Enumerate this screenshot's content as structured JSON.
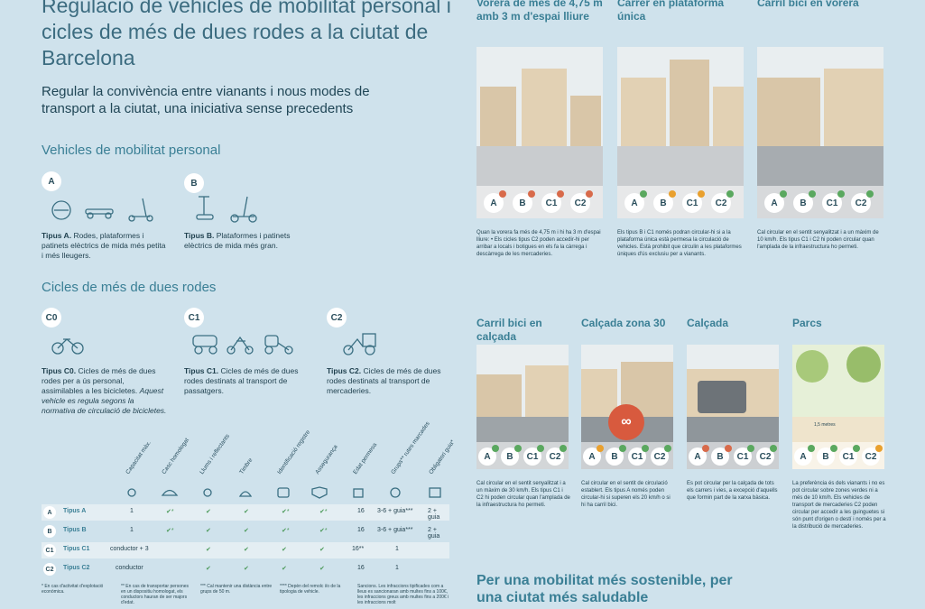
{
  "header": {
    "title": "Regulació de vehicles de mobilitat personal i cicles de més de dues rodes a la ciutat de Barcelona",
    "subtitle": "Regular la convivència entre vianants i nous modes de transport a la ciutat, una iniciativa sense precedents"
  },
  "vmp": {
    "heading": "Vehicles de mobilitat personal",
    "a": {
      "badge": "A",
      "name": "Tipus A.",
      "text": "Rodes, plataformes i patinets elèctrics de mida més petita i més lleugers."
    },
    "b": {
      "badge": "B",
      "name": "Tipus B.",
      "text": "Plataformes i patinets elèctrics de mida més gran."
    }
  },
  "cycles": {
    "heading": "Cicles de més de dues rodes",
    "c0": {
      "badge": "C0",
      "name": "Tipus C0.",
      "text": "Cicles de més de dues rodes per a ús personal, assimilables a les bicicletes.",
      "italic": "Aquest vehicle es regula segons la normativa de circulació de bicicletes."
    },
    "c1": {
      "badge": "C1",
      "name": "Tipus C1.",
      "text": "Cicles de més de dues rodes destinats al transport de passatgers."
    },
    "c2": {
      "badge": "C2",
      "name": "Tipus C2.",
      "text": "Cicles de més de dues rodes destinats al transport de mercaderies."
    }
  },
  "table": {
    "headers": [
      "Capacitat màx.",
      "Casc homologat",
      "Llums i reflectants",
      "Timbre",
      "Identificació registre",
      "Assegurança",
      "Edat permesa",
      "Grups** rutes marcades",
      "Obligatori guia*"
    ],
    "rows": [
      {
        "badge": "A",
        "label": "Tipus A",
        "cap": "1",
        "casc": "✔*",
        "llums": "✔",
        "timbre": "✔",
        "ident": "✔*",
        "aseg": "✔*",
        "edat": "16",
        "grups": "3-6 + guia***",
        "guia": "2 + guia"
      },
      {
        "badge": "B",
        "label": "Tipus B",
        "cap": "1",
        "casc": "✔*",
        "llums": "✔",
        "timbre": "✔",
        "ident": "✔*",
        "aseg": "✔*",
        "edat": "16",
        "grups": "3-6 + guia***",
        "guia": "2 + guia"
      },
      {
        "badge": "C1",
        "label": "Tipus C1",
        "cap": "conductor + 3",
        "casc": "",
        "llums": "✔",
        "timbre": "✔",
        "ident": "✔",
        "aseg": "✔",
        "edat": "16**",
        "grups": "1",
        "guia": ""
      },
      {
        "badge": "C2",
        "label": "Tipus C2",
        "cap": "conductor",
        "casc": "",
        "llums": "✔",
        "timbre": "✔",
        "ident": "✔",
        "aseg": "✔",
        "edat": "16",
        "grups": "1",
        "guia": ""
      }
    ],
    "footnotes": [
      "* En cas d'activitat d'explotació econòmica.",
      "** En cas de transportar persones en un dispositiu homologat, els conductors hauran de ser majors d'edat.",
      "*** Cal mantenir una distància entre grups de 50 m.",
      "**** Depèn del remolc i/o de la tipologia de vehicle.",
      "Sancions. Les infraccions tipificades com a lleus es sancionaran amb multes fins a 100€, les infraccions greus amb multes fins a 200€ i les infraccions molt"
    ]
  },
  "cards": [
    {
      "title": "Vorera de més de 4,75 m amb 3 m d'espai lliure",
      "chips": [
        "A",
        "B",
        "C1",
        "C2"
      ],
      "status": [
        "no",
        "no",
        "no",
        "no"
      ],
      "text": "Quan la vorera fa més de 4,75 m i hi ha 3 m d'espai lliure: • Els cicles tipus C2 poden accedir-hi per arribar a locals i botigues en els fa la càrrega i descàrrega de les mercaderies."
    },
    {
      "title": "Carrer en plataforma única",
      "chips": [
        "A",
        "B",
        "C1",
        "C2"
      ],
      "status": [
        "ok",
        "warn",
        "warn",
        "ok"
      ],
      "text": "Els tipus B i C1 només podran circular-hi si a la plataforma única està permesa la circulació de vehicles. Està prohibit que circulin a les plataformes úniques d'ús exclusiu per a vianants."
    },
    {
      "title": "Carril bici en vorera",
      "chips": [
        "A",
        "B",
        "C1",
        "C2"
      ],
      "status": [
        "ok",
        "ok",
        "ok",
        "ok"
      ],
      "text": "Cal circular en el sentit senyalitzat i a un màxim de 10 km/h. Els tipus C1 i C2 hi poden circular quan l'amplada de la infraestructura ho permeti."
    },
    {
      "title": "Carril bici en calçada",
      "chips": [
        "A",
        "B",
        "C1",
        "C2"
      ],
      "status": [
        "ok",
        "ok",
        "ok",
        "ok"
      ],
      "text": "Cal circular en el sentit senyalitzat i a un màxim de 30 km/h. Els tipus C1 i C2 hi poden circular quan l'amplada de la infraestructura ho permeti."
    },
    {
      "title": "Calçada zona 30",
      "chips": [
        "A",
        "B",
        "C1",
        "C2"
      ],
      "status": [
        "warn",
        "ok",
        "ok",
        "ok"
      ],
      "text": "Cal circular en el sentit de circulació establert. Els tipus A només poden circular-hi si superen els 20 km/h o si hi ha carril bici."
    },
    {
      "title": "Calçada",
      "chips": [
        "A",
        "B",
        "C1",
        "C2"
      ],
      "status": [
        "no",
        "no",
        "ok",
        "ok"
      ],
      "text": "Es pot circular per la calçada de tots els carrers i vies, a excepció d'aquells que formin part de la xarxa bàsica."
    },
    {
      "title": "Parcs",
      "chips": [
        "A",
        "B",
        "C1",
        "C2"
      ],
      "status": [
        "ok",
        "ok",
        "ok",
        "warn"
      ],
      "text": "La preferència és dels vianants i no es pot circular sobre zones verdes ni a més de 10 km/h. Els vehicles de transport de mercaderies C2 poden circular per accedir a les guinguetes si són punt d'origen o destí i només per a la distribució de mercaderies."
    }
  ],
  "parks_label": "1,5 metres",
  "footer": {
    "title": "Per una mobilitat més sostenible, per una ciutat més saludable"
  }
}
